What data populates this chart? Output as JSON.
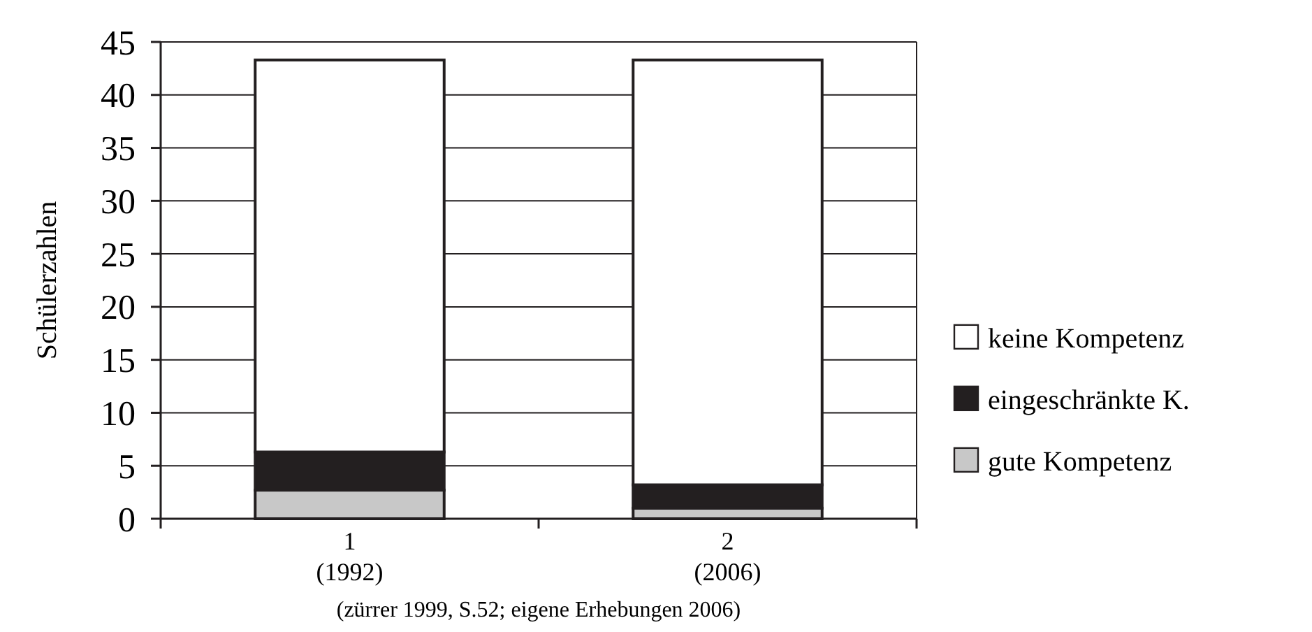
{
  "chart_data": {
    "type": "bar",
    "stacked": true,
    "ylabel": "Schülerzahlen",
    "categories": [
      "1\n(1992)",
      "2\n(2006)"
    ],
    "series": [
      {
        "name": "gute Kompetenz",
        "color": "#c8c8c8",
        "values": [
          2.7,
          1.0
        ]
      },
      {
        "name": "eingeschränkte K.",
        "color": "#231f20",
        "values": [
          3.6,
          2.2
        ]
      },
      {
        "name": "keine Kompetenz",
        "color": "#ffffff",
        "values": [
          37.0,
          40.1
        ]
      }
    ],
    "ylim": [
      0,
      45
    ],
    "yticks": [
      0,
      5,
      10,
      15,
      20,
      25,
      30,
      35,
      40,
      45
    ],
    "grid": "y",
    "legend": "right",
    "annotations": [
      "(zürrer 1999, S.52; eigene Erhebungen 2006)"
    ]
  }
}
